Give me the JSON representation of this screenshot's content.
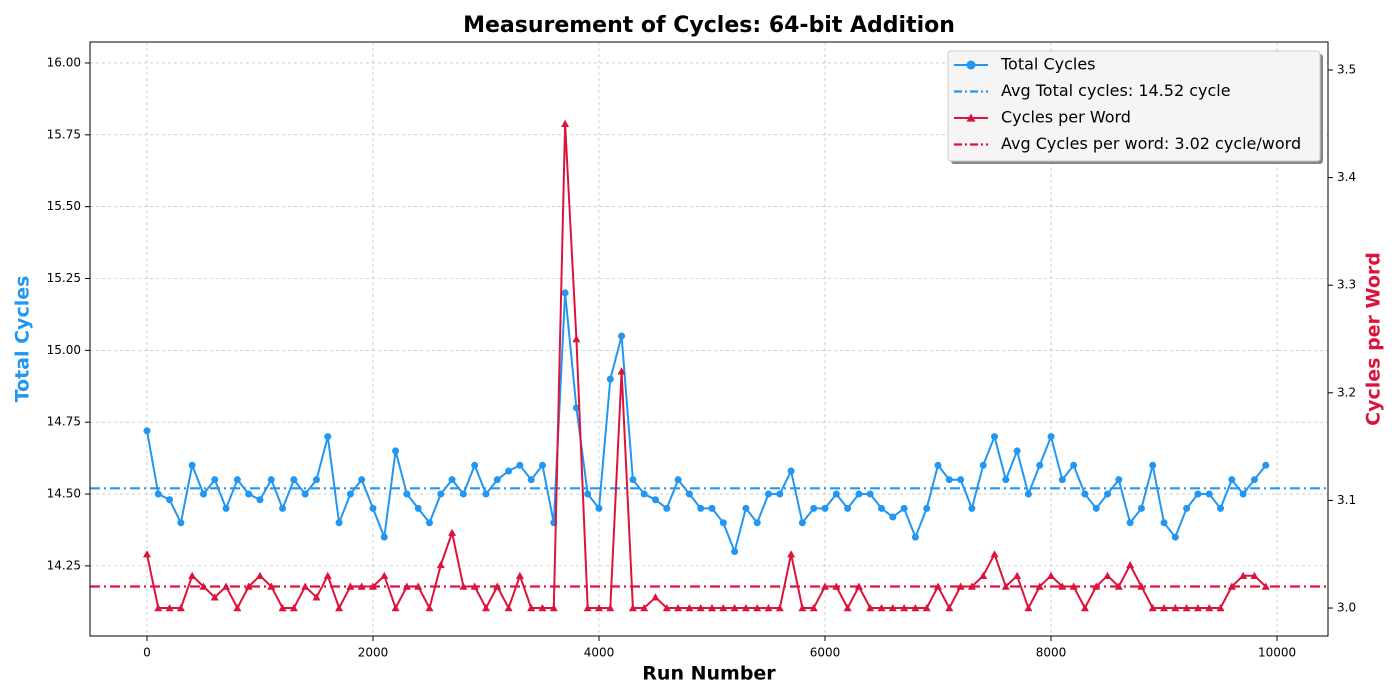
{
  "chart_data": {
    "type": "line",
    "title": "Measurement of Cycles: 64-bit Addition",
    "x_label": "Run Number",
    "y_label": "Total Cycles",
    "y2_label": "Cycles per Word",
    "x": [
      0,
      100,
      200,
      300,
      400,
      500,
      600,
      700,
      800,
      900,
      1000,
      1100,
      1200,
      1300,
      1400,
      1500,
      1600,
      1700,
      1800,
      1900,
      2000,
      2100,
      2200,
      2300,
      2400,
      2500,
      2600,
      2700,
      2800,
      2900,
      3000,
      3100,
      3200,
      3300,
      3400,
      3500,
      3600,
      3700,
      3800,
      3900,
      4000,
      4100,
      4200,
      4300,
      4400,
      4500,
      4600,
      4700,
      4800,
      4900,
      5000,
      5100,
      5200,
      5300,
      5400,
      5500,
      5600,
      5700,
      5800,
      5900,
      6000,
      6100,
      6200,
      6300,
      6400,
      6500,
      6600,
      6700,
      6800,
      6900,
      7000,
      7100,
      7200,
      7300,
      7400,
      7500,
      7600,
      7700,
      7800,
      7900,
      8000,
      8100,
      8200,
      8300,
      8400,
      8500,
      8600,
      8700,
      8800,
      8900,
      9000,
      9100,
      9200,
      9300,
      9400,
      9500,
      9600,
      9700,
      9800,
      9900
    ],
    "series": [
      {
        "name": "Total Cycles",
        "color": "#2196f3",
        "marker": "circle",
        "axis": "y",
        "values": [
          14.72,
          14.5,
          14.48,
          14.4,
          14.6,
          14.5,
          14.55,
          14.45,
          14.55,
          14.5,
          14.48,
          14.55,
          14.45,
          14.55,
          14.5,
          14.55,
          14.7,
          14.4,
          14.5,
          14.55,
          14.45,
          14.35,
          14.65,
          14.5,
          14.45,
          14.4,
          14.5,
          14.55,
          14.5,
          14.6,
          14.5,
          14.55,
          14.58,
          14.6,
          14.55,
          14.6,
          14.4,
          15.2,
          14.8,
          14.5,
          14.45,
          14.9,
          15.05,
          14.55,
          14.5,
          14.48,
          14.45,
          14.55,
          14.5,
          14.45,
          14.45,
          14.4,
          14.3,
          14.45,
          14.4,
          14.5,
          14.5,
          14.58,
          14.4,
          14.45,
          14.45,
          14.5,
          14.45,
          14.5,
          14.5,
          14.45,
          14.42,
          14.45,
          14.35,
          14.45,
          14.6,
          14.55,
          14.55,
          14.45,
          14.6,
          14.7,
          14.55,
          14.65,
          14.5,
          14.6,
          14.7,
          14.55,
          14.6,
          14.5,
          14.45,
          14.5,
          14.55,
          14.4,
          14.45,
          14.6,
          14.4,
          14.35,
          14.45,
          14.5,
          14.5,
          14.45,
          14.55,
          14.5,
          14.55,
          14.6
        ]
      },
      {
        "name": "Cycles per Word",
        "color": "#dc143c",
        "marker": "triangle",
        "axis": "y2",
        "values": [
          3.05,
          3.0,
          3.0,
          3.0,
          3.03,
          3.02,
          3.01,
          3.02,
          3.0,
          3.02,
          3.03,
          3.02,
          3.0,
          3.0,
          3.02,
          3.01,
          3.03,
          3.0,
          3.02,
          3.02,
          3.02,
          3.03,
          3.0,
          3.02,
          3.02,
          3.0,
          3.04,
          3.07,
          3.02,
          3.02,
          3.0,
          3.02,
          3.0,
          3.03,
          3.0,
          3.0,
          3.0,
          3.45,
          3.25,
          3.0,
          3.0,
          3.0,
          3.22,
          3.0,
          3.0,
          3.01,
          3.0,
          3.0,
          3.0,
          3.0,
          3.0,
          3.0,
          3.0,
          3.0,
          3.0,
          3.0,
          3.0,
          3.05,
          3.0,
          3.0,
          3.02,
          3.02,
          3.0,
          3.02,
          3.0,
          3.0,
          3.0,
          3.0,
          3.0,
          3.0,
          3.02,
          3.0,
          3.02,
          3.02,
          3.03,
          3.05,
          3.02,
          3.03,
          3.0,
          3.02,
          3.03,
          3.02,
          3.02,
          3.0,
          3.02,
          3.03,
          3.02,
          3.04,
          3.02,
          3.0,
          3.0,
          3.0,
          3.0,
          3.0,
          3.0,
          3.0,
          3.02,
          3.03,
          3.03,
          3.02
        ]
      }
    ],
    "hlines": [
      {
        "name": "Avg Total cycles: 14.52 cycle",
        "value": 14.52,
        "color": "#2196f3",
        "axis": "y"
      },
      {
        "name": "Avg Cycles per word: 3.02 cycle/word",
        "value": 3.02,
        "color": "#dc143c",
        "axis": "y2"
      }
    ],
    "xlim": [
      -504,
      10451
    ],
    "xticks": [
      0,
      2000,
      4000,
      6000,
      8000,
      10000
    ],
    "ylim": [
      14.006,
      16.073
    ],
    "yticks": [
      {
        "value": 14.25,
        "label": "14.25"
      },
      {
        "value": 14.5,
        "label": "14.50"
      },
      {
        "value": 14.75,
        "label": "14.75"
      },
      {
        "value": 15,
        "label": "15.00"
      },
      {
        "value": 15.25,
        "label": "15.25"
      },
      {
        "value": 15.5,
        "label": "15.50"
      },
      {
        "value": 15.75,
        "label": "15.75"
      },
      {
        "value": 16,
        "label": "16.00"
      }
    ],
    "y2lim": [
      2.974,
      3.526
    ],
    "y2ticks": [
      {
        "value": 3,
        "label": "3.0"
      },
      3.1,
      3.2,
      3.3,
      3.4,
      3.5
    ],
    "grid": true,
    "legend": "upper right"
  }
}
